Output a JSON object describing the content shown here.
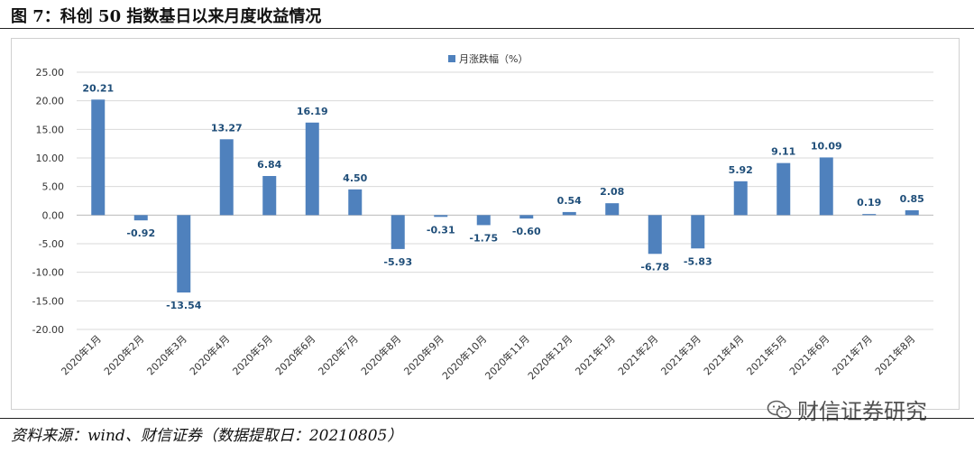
{
  "figure": {
    "title": "图 7：科创 50 指数基日以来月度收益情况",
    "source": "资料来源：wind、财信证券（数据提取日：20210805）",
    "watermark": "财信证券研究",
    "watermark_icon": "wechat-icon"
  },
  "chart_data": {
    "type": "bar",
    "title": "",
    "xlabel": "",
    "ylabel": "",
    "legend_position": "top-center",
    "grid": true,
    "ylim": [
      -20,
      25
    ],
    "yticks": [
      "-20.00",
      "-15.00",
      "-10.00",
      "-5.00",
      "0.00",
      "5.00",
      "10.00",
      "15.00",
      "20.00",
      "25.00"
    ],
    "ytick_values": [
      -20,
      -15,
      -10,
      -5,
      0,
      5,
      10,
      15,
      20,
      25
    ],
    "bar_color": "#4f81bd",
    "label_color": "#1f4e79",
    "categories": [
      "2020年1月",
      "2020年2月",
      "2020年3月",
      "2020年4月",
      "2020年5月",
      "2020年6月",
      "2020年7月",
      "2020年8月",
      "2020年9月",
      "2020年10月",
      "2020年11月",
      "2020年12月",
      "2021年1月",
      "2021年2月",
      "2021年3月",
      "2021年4月",
      "2021年5月",
      "2021年6月",
      "2021年7月",
      "2021年8月"
    ],
    "series": [
      {
        "name": "月涨跌幅（%）",
        "values": [
          20.21,
          -0.92,
          -13.54,
          13.27,
          6.84,
          16.19,
          4.5,
          -5.93,
          -0.31,
          -1.75,
          -0.6,
          0.54,
          2.08,
          -6.78,
          -5.83,
          5.92,
          9.11,
          10.09,
          0.19,
          0.85
        ],
        "labels": [
          "20.21",
          "-0.92",
          "-13.54",
          "13.27",
          "6.84",
          "16.19",
          "4.50",
          "-5.93",
          "-0.31",
          "-1.75",
          "-0.60",
          "0.54",
          "2.08",
          "-6.78",
          "-5.83",
          "5.92",
          "9.11",
          "10.09",
          "0.19",
          "0.85"
        ]
      }
    ]
  }
}
